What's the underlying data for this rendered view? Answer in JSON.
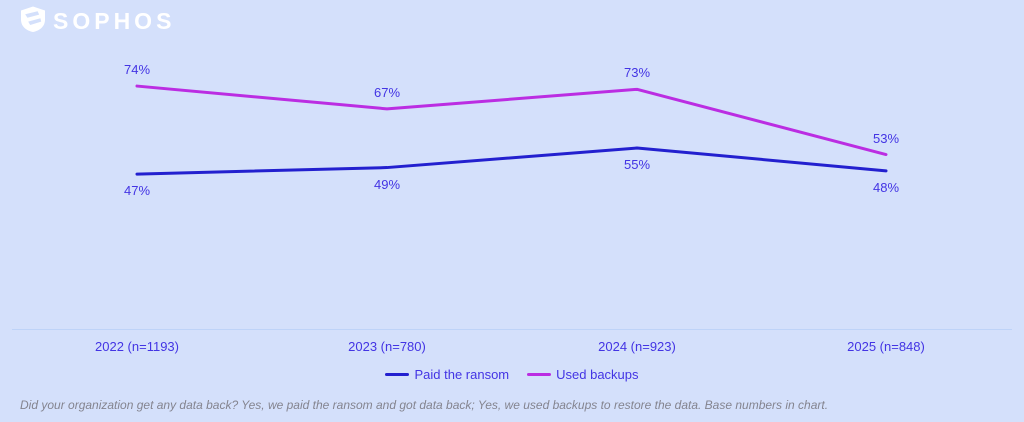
{
  "header": {
    "brand": "SOPHOS"
  },
  "chart_data": {
    "type": "line",
    "title": "",
    "categories": [
      "2022 (n=1193)",
      "2023 (n=780)",
      "2024 (n=923)",
      "2025 (n=848)"
    ],
    "series": [
      {
        "name": "Paid the ransom",
        "color": "#2320cf",
        "unit": "%",
        "values": [
          47,
          49,
          55,
          48
        ]
      },
      {
        "name": "Used backups",
        "color": "#bb2de2",
        "unit": "%",
        "values": [
          74,
          67,
          73,
          53
        ]
      }
    ],
    "value_format": "percent",
    "ylim": [
      0,
      100
    ],
    "grid": false,
    "legend_position": "bottom",
    "data_labels": true
  },
  "footnote": "Did your organization get any data back? Yes, we paid the ransom and got data back; Yes, we used backups to restore the data. Base numbers in chart.",
  "colors": {
    "background": "#d4e0fb",
    "label_text": "#4334e4",
    "axis_line": "#bed3f8",
    "footnote_text": "#84848f",
    "logo": "#ffffff"
  }
}
